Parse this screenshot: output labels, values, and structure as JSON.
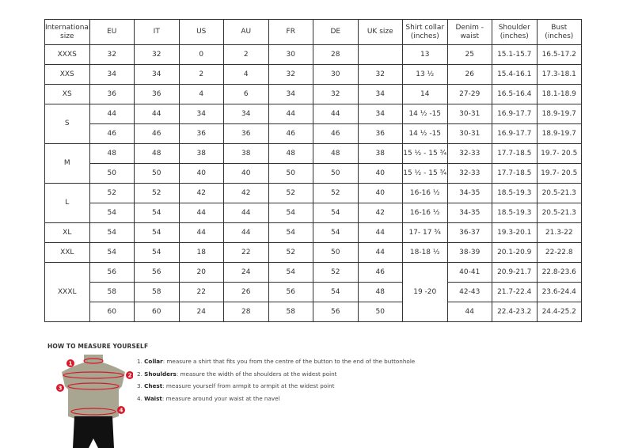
{
  "table": {
    "headers": [
      "International size",
      "EU",
      "IT",
      "US",
      "AU",
      "FR",
      "DE",
      "UK size",
      "Shirt collar (inches)",
      "Denim - waist",
      "Shoulder (inches)",
      "Bust (inches)"
    ],
    "rows": [
      [
        "XXXS",
        "32",
        "32",
        "0",
        "2",
        "30",
        "28",
        "",
        "13",
        "25",
        "15.1-15.7",
        "16.5-17.2"
      ],
      [
        "XXS",
        "34",
        "34",
        "2",
        "4",
        "32",
        "30",
        "32",
        "13 ½",
        "26",
        "15.4-16.1",
        "17.3-18.1"
      ],
      [
        "XS",
        "36",
        "36",
        "4",
        "6",
        "34",
        "32",
        "34",
        "14",
        "27-29",
        "16.5-16.4",
        "18.1-18.9"
      ],
      [
        "S",
        "44",
        "44",
        "34",
        "34",
        "44",
        "44",
        "34",
        "14 ½ -15",
        "30-31",
        "16.9-17.7",
        "18.9-19.7"
      ],
      [
        null,
        "46",
        "46",
        "36",
        "36",
        "46",
        "46",
        "36",
        "14 ½ -15",
        "30-31",
        "16.9-17.7",
        "18.9-19.7"
      ],
      [
        "M",
        "48",
        "48",
        "38",
        "38",
        "48",
        "48",
        "38",
        "15 ½ - 15 ¾",
        "32-33",
        "17.7-18.5",
        "19.7- 20.5"
      ],
      [
        null,
        "50",
        "50",
        "40",
        "40",
        "50",
        "50",
        "40",
        "15 ½ - 15 ¾",
        "32-33",
        "17.7-18.5",
        "19.7- 20.5"
      ],
      [
        "L",
        "52",
        "52",
        "42",
        "42",
        "52",
        "52",
        "40",
        "16-16 ½",
        "34-35",
        "18.5-19.3",
        "20.5-21.3"
      ],
      [
        null,
        "54",
        "54",
        "44",
        "44",
        "54",
        "54",
        "42",
        "16-16 ½",
        "34-35",
        "18.5-19.3",
        "20.5-21.3"
      ],
      [
        "XL",
        "54",
        "54",
        "44",
        "44",
        "54",
        "54",
        "44",
        "17- 17 ¾",
        "36-37",
        "19.3-20.1",
        "21.3-22"
      ],
      [
        "XXL",
        "54",
        "54",
        "18",
        "22",
        "52",
        "50",
        "44",
        "18-18 ½",
        "38-39",
        "20.1-20.9",
        "22-22.8"
      ],
      [
        "XXXL",
        "56",
        "56",
        "20",
        "24",
        "54",
        "52",
        "46",
        "19 -20",
        "40-41",
        "20.9-21.7",
        "22.8-23.6"
      ],
      [
        null,
        "58",
        "58",
        "22",
        "26",
        "56",
        "54",
        "48",
        null,
        "42-43",
        "21.7-22.4",
        "23.6-24.4"
      ],
      [
        null,
        "60",
        "60",
        "24",
        "28",
        "58",
        "56",
        "50",
        null,
        "44",
        "22.4-23.2",
        "24.4-25.2"
      ]
    ]
  },
  "guide": {
    "title": "HOW TO MEASURE YOURSELF",
    "steps": [
      {
        "num": "1.",
        "term": "Collar",
        "text": ": measure a shirt that fits you from the centre of the button to the end of the buttonhole"
      },
      {
        "num": "2.",
        "term": "Shoulders",
        "text": ": measure the width of the shoulders at the widest point"
      },
      {
        "num": "3.",
        "term": "Chest",
        "text": ": measure yourself from armpit to armpit at the widest point"
      },
      {
        "num": "4.",
        "term": "Waist",
        "text": ": measure around your waist at the navel"
      }
    ],
    "markers": [
      "1",
      "2",
      "3",
      "4"
    ],
    "marker_color": "#d7182a",
    "body_color": "#a8a690"
  }
}
